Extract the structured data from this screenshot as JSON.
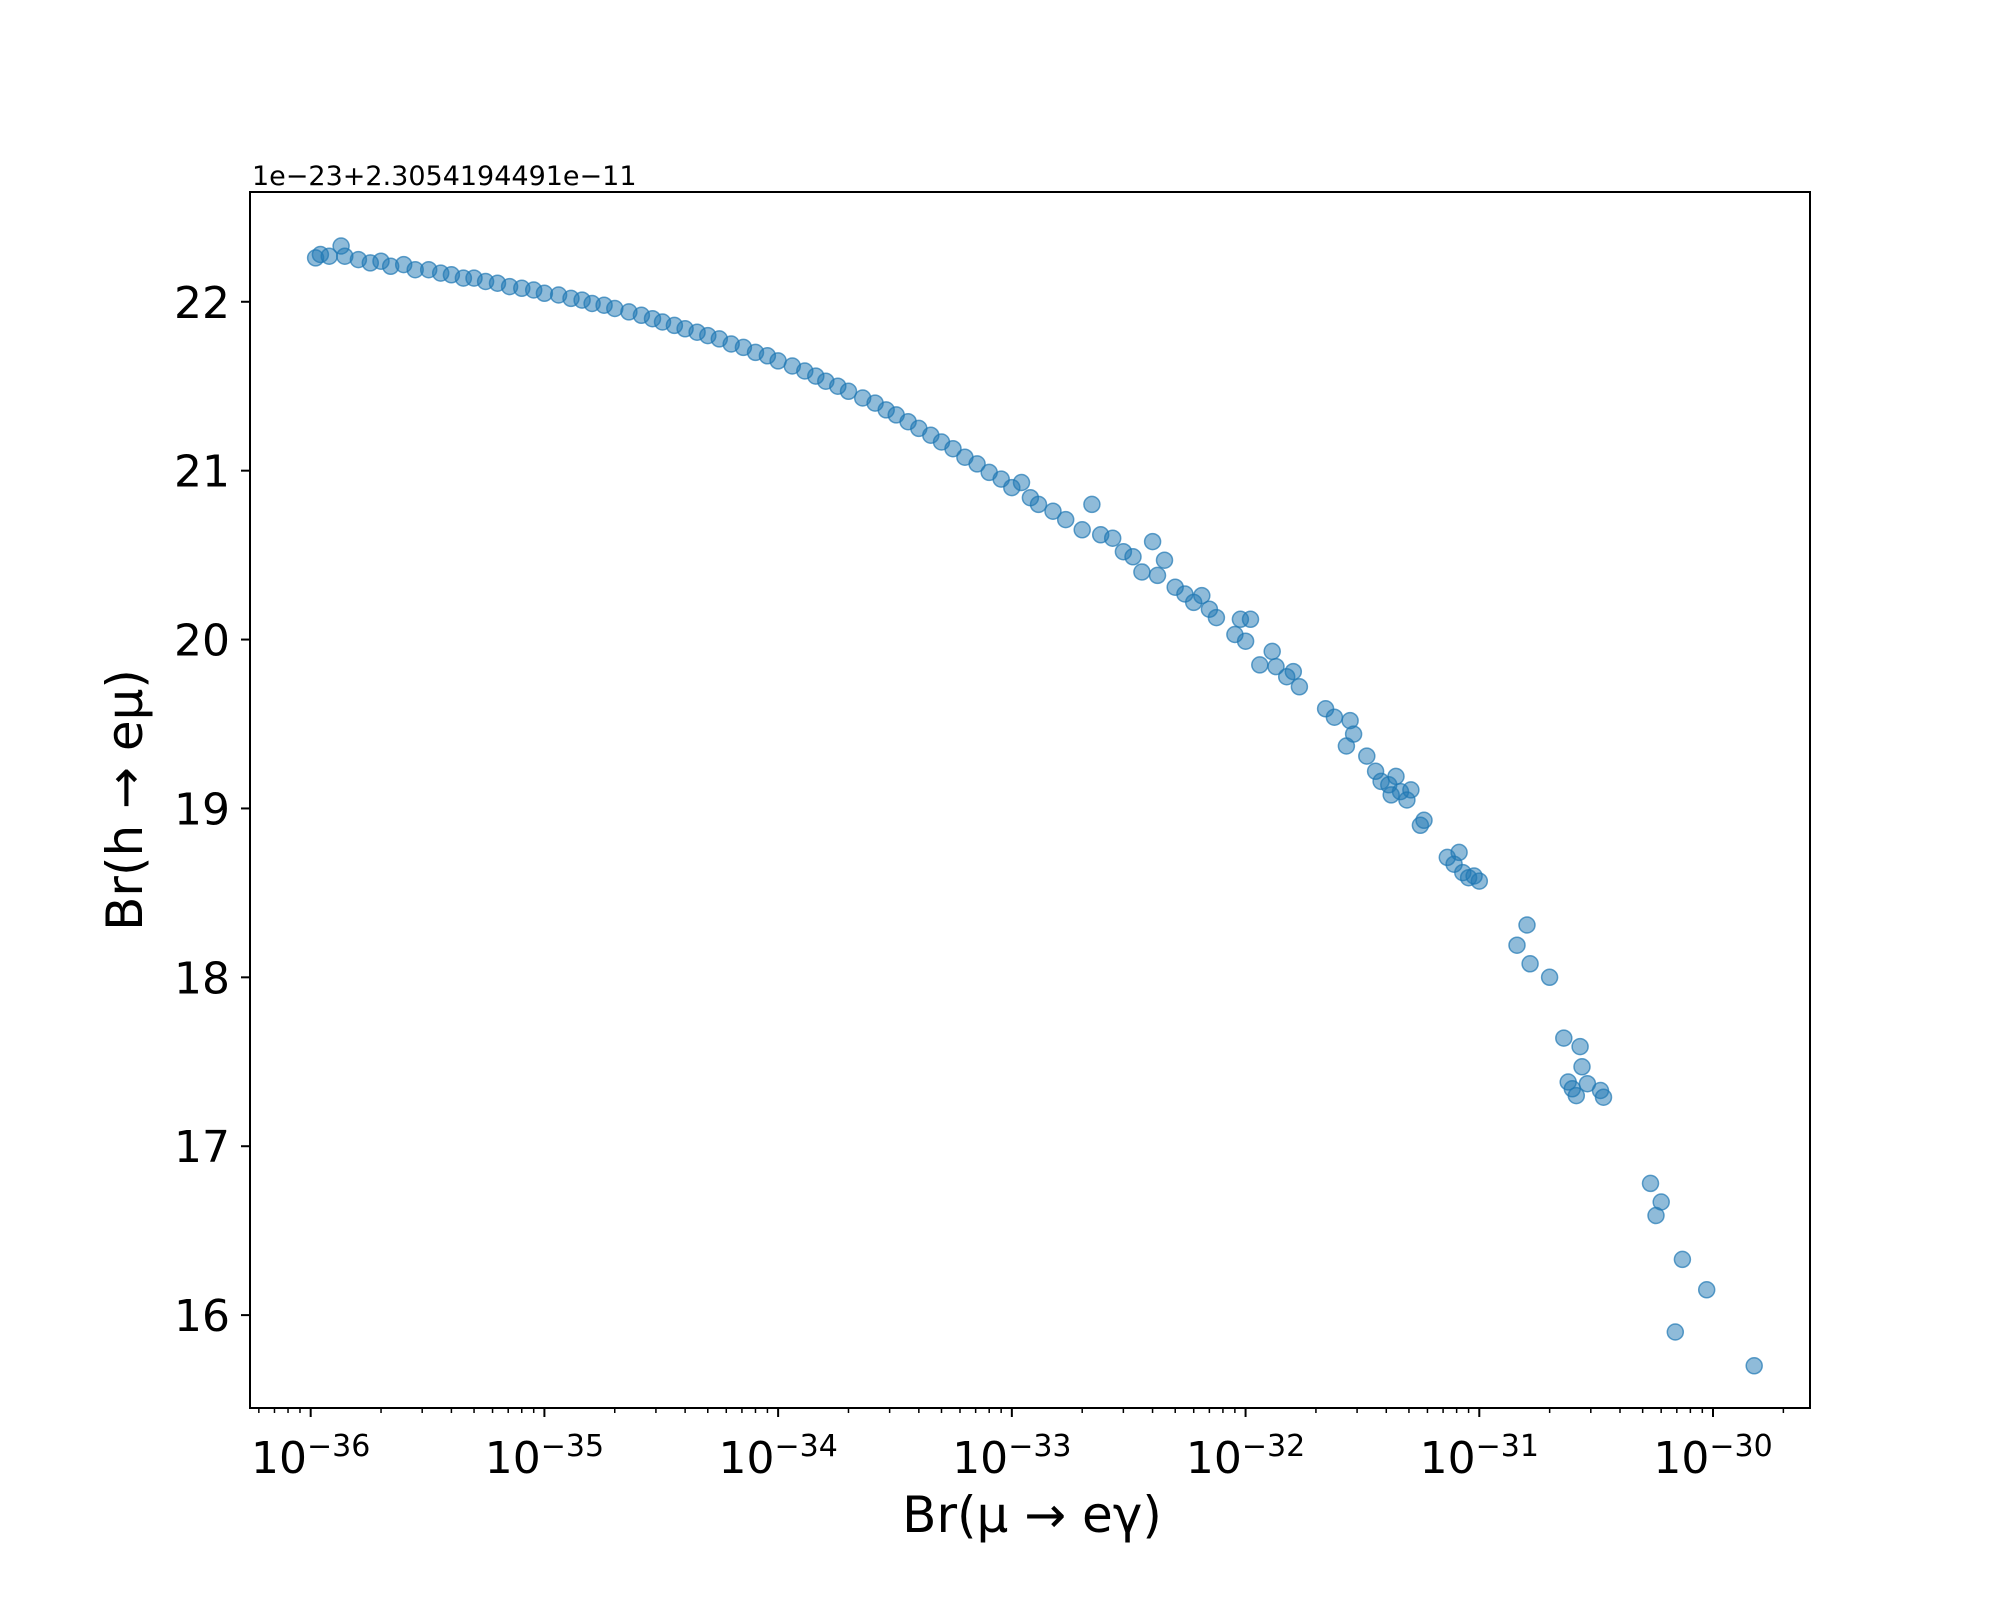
{
  "chart_data": {
    "type": "scatter",
    "xlabel": "Br(μ → eγ)",
    "ylabel": "Br(h → eμ)",
    "offset_text": "1e−23+2.3054194491e−11",
    "x_scale": "log",
    "xlim": [
      5.5e-37,
      2.6e-30
    ],
    "ylim": [
      15.45,
      22.65
    ],
    "x_ticks": [
      {
        "value": 1e-36,
        "base": "10",
        "exp": "−36"
      },
      {
        "value": 1e-35,
        "base": "10",
        "exp": "−35"
      },
      {
        "value": 1e-34,
        "base": "10",
        "exp": "−34"
      },
      {
        "value": 1e-33,
        "base": "10",
        "exp": "−33"
      },
      {
        "value": 1e-32,
        "base": "10",
        "exp": "−32"
      },
      {
        "value": 1e-31,
        "base": "10",
        "exp": "−31"
      },
      {
        "value": 1e-30,
        "base": "10",
        "exp": "−30"
      }
    ],
    "y_ticks": [
      {
        "value": 16,
        "label": "16"
      },
      {
        "value": 17,
        "label": "17"
      },
      {
        "value": 18,
        "label": "18"
      },
      {
        "value": 19,
        "label": "19"
      },
      {
        "value": 20,
        "label": "20"
      },
      {
        "value": 21,
        "label": "21"
      },
      {
        "value": 22,
        "label": "22"
      }
    ],
    "grid": false,
    "legend": "none",
    "marker_color": "#1f77b4",
    "marker_alpha": 0.5,
    "series": [
      {
        "points": [
          [
            1.05e-36,
            22.26
          ],
          [
            1.1e-36,
            22.28
          ],
          [
            1.2e-36,
            22.27
          ],
          [
            1.35e-36,
            22.33
          ],
          [
            1.4e-36,
            22.27
          ],
          [
            1.6e-36,
            22.25
          ],
          [
            1.8e-36,
            22.23
          ],
          [
            2e-36,
            22.24
          ],
          [
            2.2e-36,
            22.21
          ],
          [
            2.5e-36,
            22.22
          ],
          [
            2.8e-36,
            22.19
          ],
          [
            3.2e-36,
            22.19
          ],
          [
            3.6e-36,
            22.17
          ],
          [
            4e-36,
            22.16
          ],
          [
            4.5e-36,
            22.14
          ],
          [
            5e-36,
            22.14
          ],
          [
            5.6e-36,
            22.12
          ],
          [
            6.3e-36,
            22.11
          ],
          [
            7.1e-36,
            22.09
          ],
          [
            8e-36,
            22.08
          ],
          [
            9e-36,
            22.07
          ],
          [
            1e-35,
            22.05
          ],
          [
            1.15e-35,
            22.04
          ],
          [
            1.3e-35,
            22.02
          ],
          [
            1.45e-35,
            22.01
          ],
          [
            1.6e-35,
            21.99
          ],
          [
            1.8e-35,
            21.98
          ],
          [
            2e-35,
            21.96
          ],
          [
            2.3e-35,
            21.94
          ],
          [
            2.6e-35,
            21.92
          ],
          [
            2.9e-35,
            21.9
          ],
          [
            3.2e-35,
            21.88
          ],
          [
            3.6e-35,
            21.86
          ],
          [
            4e-35,
            21.84
          ],
          [
            4.5e-35,
            21.82
          ],
          [
            5e-35,
            21.8
          ],
          [
            5.6e-35,
            21.78
          ],
          [
            6.3e-35,
            21.75
          ],
          [
            7.1e-35,
            21.73
          ],
          [
            8e-35,
            21.7
          ],
          [
            9e-35,
            21.68
          ],
          [
            1e-34,
            21.65
          ],
          [
            1.15e-34,
            21.62
          ],
          [
            1.3e-34,
            21.59
          ],
          [
            1.45e-34,
            21.56
          ],
          [
            1.6e-34,
            21.53
          ],
          [
            1.8e-34,
            21.5
          ],
          [
            2e-34,
            21.47
          ],
          [
            2.3e-34,
            21.43
          ],
          [
            2.6e-34,
            21.4
          ],
          [
            2.9e-34,
            21.36
          ],
          [
            3.2e-34,
            21.33
          ],
          [
            3.6e-34,
            21.29
          ],
          [
            4e-34,
            21.25
          ],
          [
            4.5e-34,
            21.21
          ],
          [
            5e-34,
            21.17
          ],
          [
            5.6e-34,
            21.13
          ],
          [
            6.3e-34,
            21.08
          ],
          [
            7.1e-34,
            21.04
          ],
          [
            8e-34,
            20.99
          ],
          [
            9e-34,
            20.95
          ],
          [
            1e-33,
            20.9
          ],
          [
            1.1e-33,
            20.93
          ],
          [
            1.2e-33,
            20.84
          ],
          [
            1.3e-33,
            20.8
          ],
          [
            1.5e-33,
            20.76
          ],
          [
            1.7e-33,
            20.71
          ],
          [
            2e-33,
            20.65
          ],
          [
            2.2e-33,
            20.8
          ],
          [
            2.4e-33,
            20.62
          ],
          [
            2.7e-33,
            20.6
          ],
          [
            3e-33,
            20.52
          ],
          [
            3.3e-33,
            20.49
          ],
          [
            3.6e-33,
            20.4
          ],
          [
            4e-33,
            20.58
          ],
          [
            4.2e-33,
            20.38
          ],
          [
            4.5e-33,
            20.47
          ],
          [
            5e-33,
            20.31
          ],
          [
            5.5e-33,
            20.27
          ],
          [
            6e-33,
            20.22
          ],
          [
            6.5e-33,
            20.26
          ],
          [
            7e-33,
            20.18
          ],
          [
            7.5e-33,
            20.13
          ],
          [
            9e-33,
            20.03
          ],
          [
            9.5e-33,
            20.12
          ],
          [
            1e-32,
            19.99
          ],
          [
            1.05e-32,
            20.12
          ],
          [
            1.15e-32,
            19.85
          ],
          [
            1.3e-32,
            19.93
          ],
          [
            1.35e-32,
            19.84
          ],
          [
            1.5e-32,
            19.78
          ],
          [
            1.6e-32,
            19.81
          ],
          [
            1.7e-32,
            19.72
          ],
          [
            2.2e-32,
            19.59
          ],
          [
            2.4e-32,
            19.54
          ],
          [
            2.7e-32,
            19.37
          ],
          [
            2.8e-32,
            19.52
          ],
          [
            2.9e-32,
            19.44
          ],
          [
            3.3e-32,
            19.31
          ],
          [
            3.6e-32,
            19.22
          ],
          [
            3.8e-32,
            19.16
          ],
          [
            4.1e-32,
            19.14
          ],
          [
            4.2e-32,
            19.08
          ],
          [
            4.4e-32,
            19.19
          ],
          [
            4.6e-32,
            19.1
          ],
          [
            4.9e-32,
            19.05
          ],
          [
            5.1e-32,
            19.11
          ],
          [
            5.6e-32,
            18.9
          ],
          [
            5.8e-32,
            18.93
          ],
          [
            7.3e-32,
            18.71
          ],
          [
            7.8e-32,
            18.67
          ],
          [
            8.2e-32,
            18.74
          ],
          [
            8.5e-32,
            18.62
          ],
          [
            9e-32,
            18.59
          ],
          [
            9.5e-32,
            18.6
          ],
          [
            1e-31,
            18.57
          ],
          [
            1.45e-31,
            18.19
          ],
          [
            1.6e-31,
            18.31
          ],
          [
            1.65e-31,
            18.08
          ],
          [
            2e-31,
            18.0
          ],
          [
            2.3e-31,
            17.64
          ],
          [
            2.4e-31,
            17.38
          ],
          [
            2.5e-31,
            17.34
          ],
          [
            2.6e-31,
            17.3
          ],
          [
            2.7e-31,
            17.59
          ],
          [
            2.75e-31,
            17.47
          ],
          [
            2.9e-31,
            17.37
          ],
          [
            3.3e-31,
            17.33
          ],
          [
            3.4e-31,
            17.29
          ],
          [
            5.4e-31,
            16.78
          ],
          [
            5.7e-31,
            16.59
          ],
          [
            6e-31,
            16.67
          ],
          [
            6.9e-31,
            15.9
          ],
          [
            7.4e-31,
            16.33
          ],
          [
            9.4e-31,
            16.15
          ],
          [
            1.5e-30,
            15.7
          ]
        ]
      }
    ]
  }
}
